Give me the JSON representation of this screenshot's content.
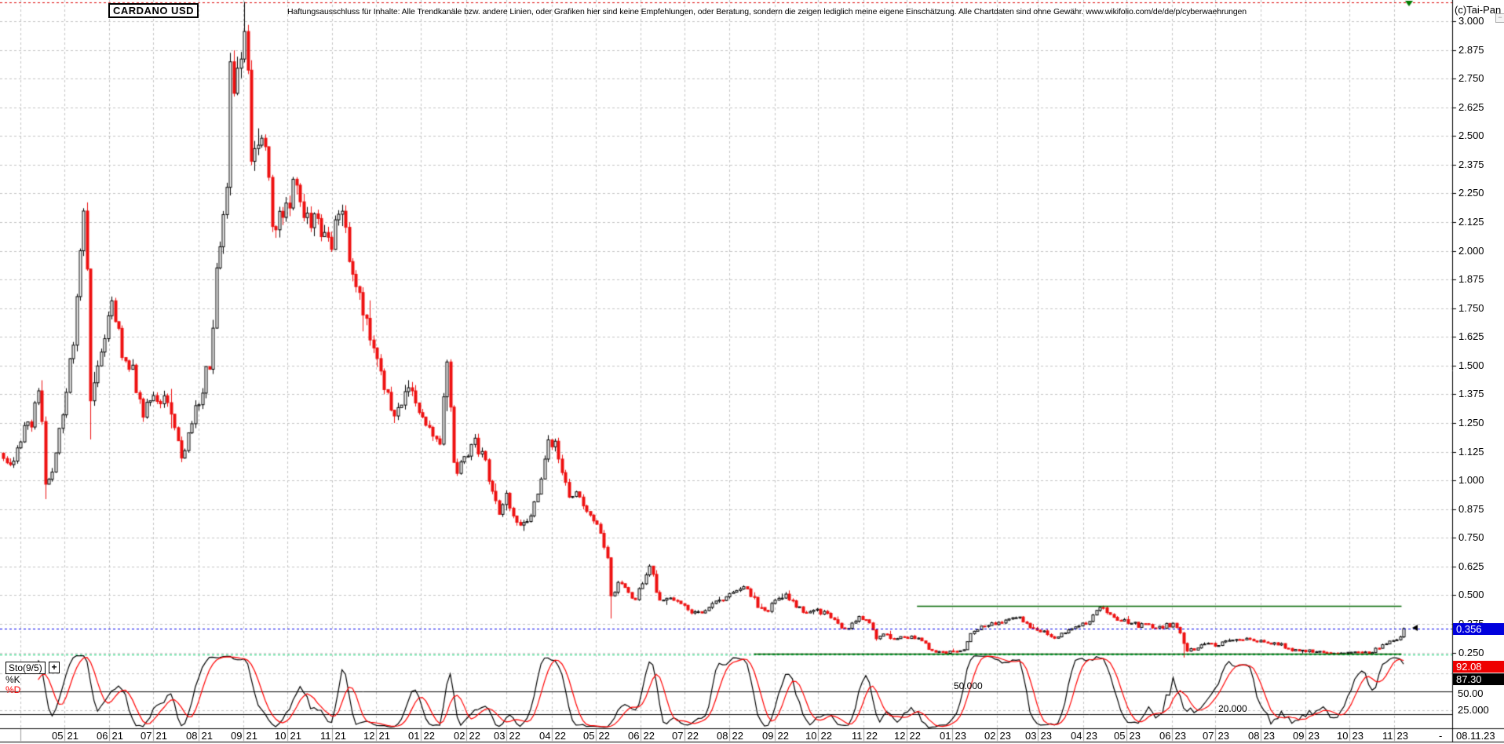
{
  "header": {
    "title": "CARDANO USD",
    "disclaimer": "Haftungsausschluss für Inhalte: Alle Trendkanäle bzw. andere Linien, oder Grafiken hier sind keine Empfehlungen, oder Beratung, sondern die zeigen lediglich meine eigene Einschätzung. Alle Chartdaten sind ohne Gewähr.  www.wikifolio.com/de/de/p/cyberwaehrungen",
    "copyright": "(c)Tai-Pan",
    "collapse_icon": "−"
  },
  "price_axis": {
    "ticks": [
      "3.000",
      "2.875",
      "2.750",
      "2.625",
      "2.500",
      "2.375",
      "2.250",
      "2.125",
      "2.000",
      "1.875",
      "1.750",
      "1.625",
      "1.500",
      "1.375",
      "1.250",
      "1.125",
      "1.000",
      "0.875",
      "0.750",
      "0.625",
      "0.500",
      "0.375",
      "0.250"
    ],
    "last_price_badge": "0.356"
  },
  "time_axis": {
    "ticks": [
      "05/21",
      "06/21",
      "07/21",
      "08/21",
      "09/21",
      "10/21",
      "11/21",
      "12/21",
      "01/22",
      "02/22",
      "03/22",
      "04/22",
      "05/22",
      "06/22",
      "07/22",
      "08/22",
      "09/22",
      "10/22",
      "11/22",
      "12/22",
      "01/23",
      "02/23",
      "03/23",
      "04/23",
      "05/23",
      "06/23",
      "07/23",
      "08/23",
      "09/23",
      "10/23",
      "11/23"
    ],
    "end_dash": "-",
    "end_date": "08.11.23"
  },
  "indicator_panel": {
    "name": "Sto(9/5)",
    "add_icon": "+",
    "legend": [
      {
        "label": "%K",
        "color": "#000000"
      },
      {
        "label": "%D",
        "color": "#ff0000"
      }
    ],
    "level_labels": {
      "mid": "50.000",
      "low": "20.000"
    },
    "axis_labels": [
      "50.00",
      "25.000"
    ],
    "badges": [
      {
        "value": "92.08",
        "bg": "#ee0000"
      },
      {
        "value": "87.30",
        "bg": "#000000"
      }
    ]
  },
  "colors": {
    "up_fill": "#ffffff",
    "up_border": "#000000",
    "down": "#ee1111",
    "grid": "#c4c4c4",
    "green_line": "#006600",
    "teal_dashed": "#00cc66",
    "ath_dashed": "#dd0000",
    "last_price_line": "#0000ee",
    "badge_blue": "#0000dd",
    "stoch_k": "#000000",
    "stoch_d": "#ff0000",
    "marker_green": "#007a00"
  },
  "chart_data": {
    "type": "candlestick",
    "symbol": "CARDANO USD",
    "x_range": [
      "2021-03-20",
      "2023-11-08"
    ],
    "y_range": [
      0.22,
      3.09
    ],
    "candle_days": 2.4,
    "last_price": 0.356,
    "price_points": [
      [
        "2021-03-20",
        1.12
      ],
      [
        "2021-03-25",
        1.05
      ],
      [
        "2021-04-01",
        1.2
      ],
      [
        "2021-04-08",
        1.25
      ],
      [
        "2021-04-14",
        1.42
      ],
      [
        "2021-04-18",
        0.99
      ],
      [
        "2021-04-25",
        1.1
      ],
      [
        "2021-05-01",
        1.35
      ],
      [
        "2021-05-08",
        1.65
      ],
      [
        "2021-05-15",
        2.28
      ],
      [
        "2021-05-19",
        1.38
      ],
      [
        "2021-05-23",
        1.5
      ],
      [
        "2021-05-29",
        1.62
      ],
      [
        "2021-06-03",
        1.78
      ],
      [
        "2021-06-10",
        1.55
      ],
      [
        "2021-06-18",
        1.45
      ],
      [
        "2021-06-23",
        1.28
      ],
      [
        "2021-06-30",
        1.4
      ],
      [
        "2021-07-06",
        1.36
      ],
      [
        "2021-07-13",
        1.3
      ],
      [
        "2021-07-20",
        1.1
      ],
      [
        "2021-07-28",
        1.28
      ],
      [
        "2021-08-03",
        1.38
      ],
      [
        "2021-08-10",
        1.55
      ],
      [
        "2021-08-14",
        2.0
      ],
      [
        "2021-08-20",
        2.2
      ],
      [
        "2021-08-23",
        2.78
      ],
      [
        "2021-08-29",
        2.72
      ],
      [
        "2021-09-02",
        2.98
      ],
      [
        "2021-09-07",
        2.38
      ],
      [
        "2021-09-11",
        2.52
      ],
      [
        "2021-09-17",
        2.42
      ],
      [
        "2021-09-21",
        2.1
      ],
      [
        "2021-09-28",
        2.2
      ],
      [
        "2021-10-06",
        2.28
      ],
      [
        "2021-10-14",
        2.18
      ],
      [
        "2021-10-22",
        2.12
      ],
      [
        "2021-10-30",
        2.0
      ],
      [
        "2021-11-08",
        2.18
      ],
      [
        "2021-11-15",
        1.92
      ],
      [
        "2021-11-23",
        1.72
      ],
      [
        "2021-11-30",
        1.58
      ],
      [
        "2021-12-07",
        1.4
      ],
      [
        "2021-12-15",
        1.28
      ],
      [
        "2021-12-23",
        1.45
      ],
      [
        "2021-12-31",
        1.32
      ],
      [
        "2022-01-08",
        1.18
      ],
      [
        "2022-01-14",
        1.14
      ],
      [
        "2022-01-19",
        1.55
      ],
      [
        "2022-01-24",
        1.04
      ],
      [
        "2022-02-01",
        1.1
      ],
      [
        "2022-02-08",
        1.17
      ],
      [
        "2022-02-16",
        1.04
      ],
      [
        "2022-02-23",
        0.86
      ],
      [
        "2022-02-28",
        0.94
      ],
      [
        "2022-03-07",
        0.8
      ],
      [
        "2022-03-15",
        0.81
      ],
      [
        "2022-03-23",
        0.96
      ],
      [
        "2022-03-29",
        1.18
      ],
      [
        "2022-04-04",
        1.14
      ],
      [
        "2022-04-12",
        0.94
      ],
      [
        "2022-04-19",
        0.95
      ],
      [
        "2022-04-26",
        0.87
      ],
      [
        "2022-05-04",
        0.78
      ],
      [
        "2022-05-10",
        0.64
      ],
      [
        "2022-05-12",
        0.47
      ],
      [
        "2022-05-16",
        0.56
      ],
      [
        "2022-05-22",
        0.52
      ],
      [
        "2022-05-28",
        0.47
      ],
      [
        "2022-06-03",
        0.58
      ],
      [
        "2022-06-07",
        0.64
      ],
      [
        "2022-06-13",
        0.49
      ],
      [
        "2022-06-21",
        0.48
      ],
      [
        "2022-06-28",
        0.46
      ],
      [
        "2022-07-05",
        0.43
      ],
      [
        "2022-07-12",
        0.42
      ],
      [
        "2022-07-19",
        0.46
      ],
      [
        "2022-07-27",
        0.49
      ],
      [
        "2022-08-04",
        0.51
      ],
      [
        "2022-08-12",
        0.54
      ],
      [
        "2022-08-20",
        0.46
      ],
      [
        "2022-08-28",
        0.44
      ],
      [
        "2022-09-05",
        0.5
      ],
      [
        "2022-09-11",
        0.49
      ],
      [
        "2022-09-19",
        0.44
      ],
      [
        "2022-09-27",
        0.43
      ],
      [
        "2022-10-05",
        0.43
      ],
      [
        "2022-10-13",
        0.38
      ],
      [
        "2022-10-21",
        0.35
      ],
      [
        "2022-10-29",
        0.4
      ],
      [
        "2022-11-06",
        0.38
      ],
      [
        "2022-11-10",
        0.31
      ],
      [
        "2022-11-16",
        0.33
      ],
      [
        "2022-11-24",
        0.31
      ],
      [
        "2022-12-02",
        0.32
      ],
      [
        "2022-12-10",
        0.31
      ],
      [
        "2022-12-18",
        0.26
      ],
      [
        "2022-12-26",
        0.255
      ],
      [
        "2023-01-03",
        0.25
      ],
      [
        "2023-01-09",
        0.27
      ],
      [
        "2023-01-15",
        0.35
      ],
      [
        "2023-01-23",
        0.37
      ],
      [
        "2023-01-31",
        0.38
      ],
      [
        "2023-02-08",
        0.39
      ],
      [
        "2023-02-16",
        0.4
      ],
      [
        "2023-02-24",
        0.36
      ],
      [
        "2023-03-04",
        0.34
      ],
      [
        "2023-03-12",
        0.32
      ],
      [
        "2023-03-20",
        0.345
      ],
      [
        "2023-03-28",
        0.36
      ],
      [
        "2023-04-05",
        0.39
      ],
      [
        "2023-04-11",
        0.43
      ],
      [
        "2023-04-15",
        0.45
      ],
      [
        "2023-04-23",
        0.4
      ],
      [
        "2023-05-01",
        0.39
      ],
      [
        "2023-05-09",
        0.37
      ],
      [
        "2023-05-17",
        0.37
      ],
      [
        "2023-05-25",
        0.365
      ],
      [
        "2023-06-02",
        0.375
      ],
      [
        "2023-06-08",
        0.33
      ],
      [
        "2023-06-10",
        0.26
      ],
      [
        "2023-06-16",
        0.265
      ],
      [
        "2023-06-24",
        0.29
      ],
      [
        "2023-07-02",
        0.285
      ],
      [
        "2023-07-08",
        0.3
      ],
      [
        "2023-07-14",
        0.315
      ],
      [
        "2023-07-22",
        0.31
      ],
      [
        "2023-07-30",
        0.305
      ],
      [
        "2023-08-07",
        0.295
      ],
      [
        "2023-08-15",
        0.29
      ],
      [
        "2023-08-21",
        0.26
      ],
      [
        "2023-08-29",
        0.26
      ],
      [
        "2023-09-06",
        0.255
      ],
      [
        "2023-09-14",
        0.25
      ],
      [
        "2023-09-22",
        0.246
      ],
      [
        "2023-09-30",
        0.25
      ],
      [
        "2023-10-08",
        0.25
      ],
      [
        "2023-10-16",
        0.248
      ],
      [
        "2023-10-24",
        0.29
      ],
      [
        "2023-11-01",
        0.3
      ],
      [
        "2023-11-05",
        0.325
      ],
      [
        "2023-11-08",
        0.356
      ]
    ],
    "key_points": [
      {
        "date": "2021-04-18",
        "low": 0.92
      },
      {
        "date": "2021-05-19",
        "low": 1.18
      },
      {
        "date": "2021-09-02",
        "high": 3.085
      },
      {
        "date": "2022-05-12",
        "low": 0.4
      },
      {
        "date": "2023-06-10",
        "low": 0.23
      }
    ],
    "overlays": {
      "ath_line": {
        "value": 3.083,
        "style": "dashed"
      },
      "resistance_line": {
        "value": 0.455,
        "from": "2022-12-08",
        "to": "2023-11-06"
      },
      "support_line": {
        "value": 0.247,
        "from": "2022-08-18",
        "to": "2023-11-06"
      },
      "last_price_line": {
        "value": 0.356,
        "style": "dashed"
      },
      "panel_top_line": {
        "value_stoch": 100,
        "style": "dashed"
      }
    },
    "stoch": {
      "k_period": 9,
      "d_period": 5,
      "levels": [
        50,
        20
      ],
      "axis_levels": [
        50,
        25
      ],
      "last_k": 87.3,
      "last_d": 92.08
    }
  }
}
